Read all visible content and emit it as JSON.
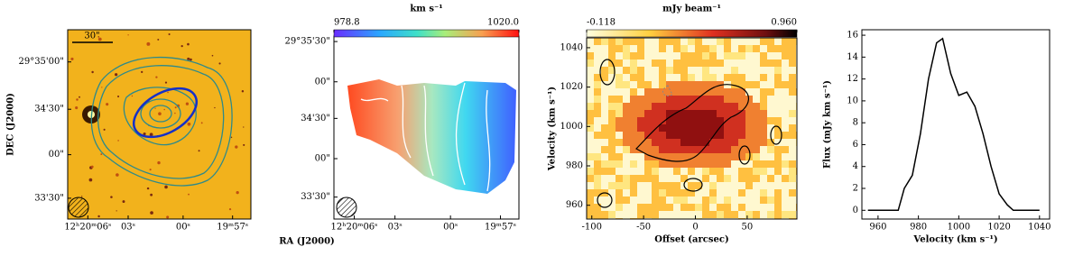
{
  "chart_data": [
    {
      "type": "image",
      "ylabel": "DEC (J2000)",
      "scalebar": "30\"",
      "xtick_labels": [
        "12ʰ20ᵐ06ˢ",
        "03ˢ",
        "00ˢ",
        "19ᵐ57ˢ"
      ],
      "ytick_labels": [
        "29°35'00\"",
        "34'30\"",
        "00\"",
        "33'30\""
      ]
    },
    {
      "type": "map",
      "xlabel": "RA (J2000)",
      "colorbar": {
        "title": "km s⁻¹",
        "lim": [
          978.8,
          1020
        ],
        "ticks": [
          978.8,
          {
            "value": 1020,
            "label": "1020.0"
          }
        ]
      },
      "xtick_labels": [
        "12ʰ20ᵐ06ˢ",
        "03ˢ",
        "00ˢ",
        "19ᵐ57ˢ"
      ],
      "ytick_labels": [
        "29°35'30\"",
        "00\"",
        "34'30\"",
        "00\"",
        "33'30\""
      ]
    },
    {
      "type": "heatmap",
      "xlabel": "Offset (arcsec)",
      "ylabel": "Velocity (km s⁻¹)",
      "colorbar": {
        "title": "mJy beam⁻¹",
        "lim": [
          -0.118,
          0.96
        ],
        "ticks": [
          -0.118,
          {
            "value": 0.96,
            "label": "0.960"
          }
        ]
      },
      "xlim": [
        -105,
        98
      ],
      "xticks": [
        -100,
        -50,
        0,
        50
      ],
      "ylim": [
        953,
        1045
      ],
      "yticks": [
        960,
        980,
        1000,
        1020,
        1040
      ]
    },
    {
      "type": "line",
      "xlabel": "Velocity (km s⁻¹)",
      "ylabel": "Flux (mJy km s⁻¹)",
      "color": "#000000",
      "x": [
        955,
        960,
        965,
        970,
        973,
        977,
        981,
        985,
        989,
        992,
        996,
        1000,
        1004,
        1008,
        1012,
        1016,
        1020,
        1024,
        1027,
        1032,
        1040
      ],
      "values": [
        0,
        0,
        0,
        0,
        2,
        3.2,
        7,
        12,
        15.3,
        15.7,
        12.5,
        10.5,
        10.8,
        9.5,
        7,
        4,
        1.5,
        0.5,
        0,
        0,
        0
      ],
      "xlim": [
        952,
        1045
      ],
      "xticks": [
        960,
        980,
        1000,
        1020,
        1040
      ],
      "ylim": [
        -0.8,
        16.5
      ],
      "yticks": [
        0,
        2,
        4,
        6,
        8,
        10,
        12,
        14,
        16
      ]
    }
  ]
}
